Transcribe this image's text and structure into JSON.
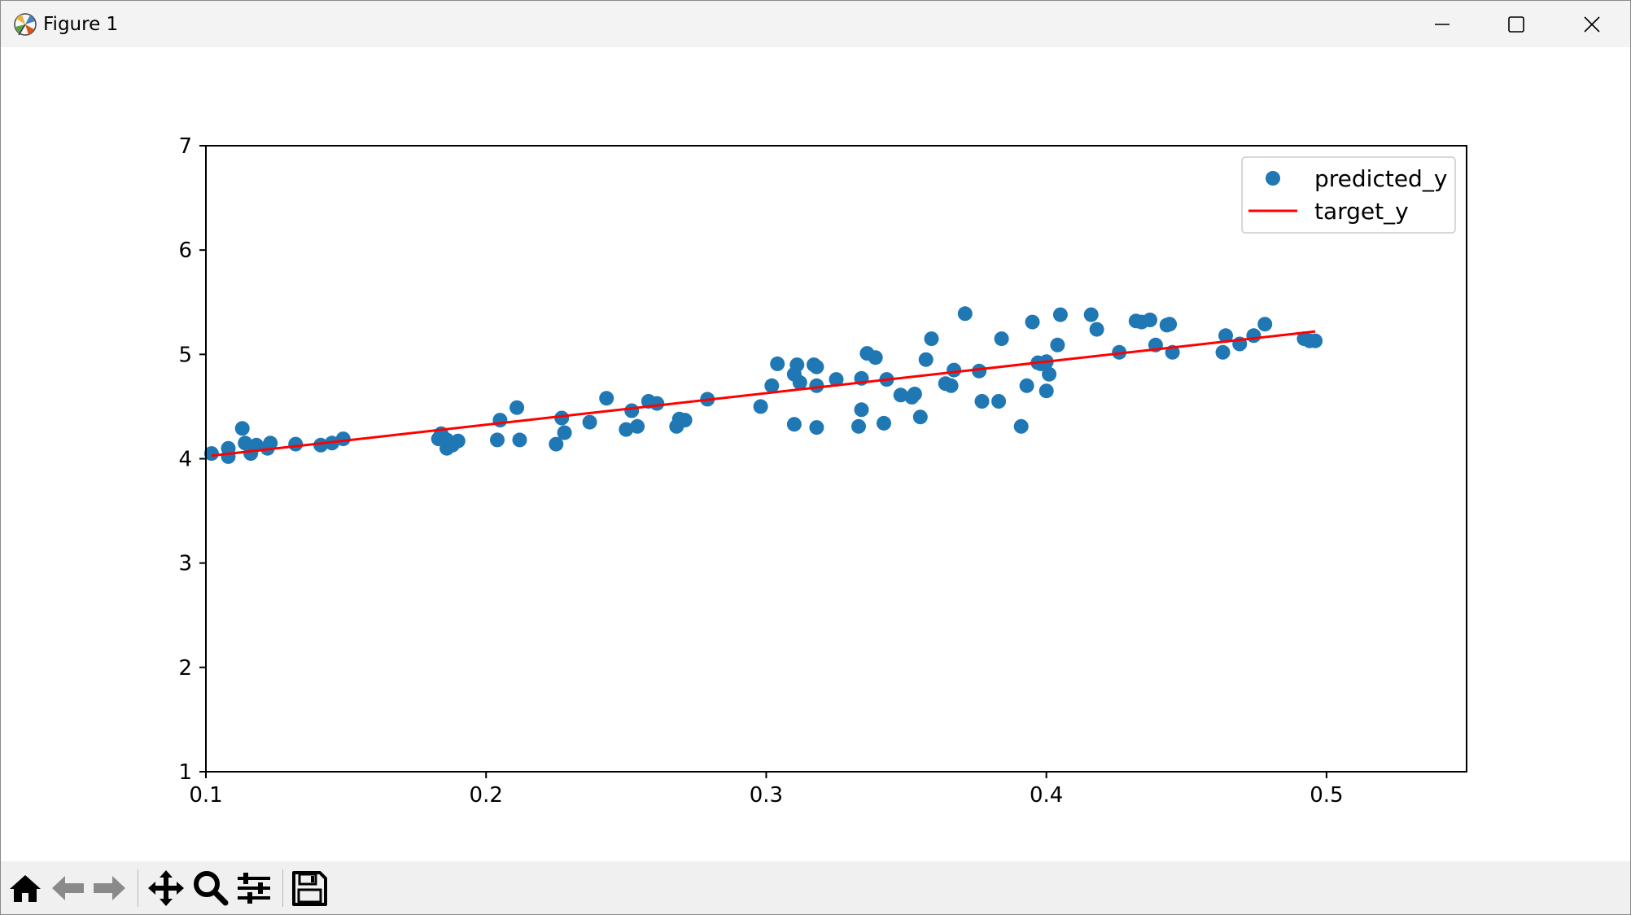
{
  "window": {
    "title": "Figure 1",
    "minimize_icon": "minimize-icon",
    "maximize_icon": "maximize-icon",
    "close_icon": "close-icon"
  },
  "toolbar": {
    "buttons": [
      {
        "name": "home",
        "icon": "home-icon"
      },
      {
        "name": "back",
        "icon": "back-arrow-icon"
      },
      {
        "name": "forward",
        "icon": "forward-arrow-icon"
      },
      {
        "name": "pan",
        "icon": "pan-move-icon"
      },
      {
        "name": "zoom",
        "icon": "zoom-magnifier-icon"
      },
      {
        "name": "configure-subplots",
        "icon": "sliders-icon"
      },
      {
        "name": "save",
        "icon": "save-floppy-icon"
      }
    ]
  },
  "chart_data": {
    "type": "scatter",
    "title": "",
    "xlabel": "",
    "ylabel": "",
    "xlim": [
      0.1,
      0.55
    ],
    "ylim": [
      1,
      7
    ],
    "xticks": [
      "0.1",
      "0.2",
      "0.3",
      "0.4",
      "0.5"
    ],
    "yticks": [
      "1",
      "2",
      "3",
      "4",
      "5",
      "6",
      "7"
    ],
    "grid": false,
    "legend_position": "upper right",
    "series": [
      {
        "name": "predicted_y",
        "kind": "scatter",
        "color": "#1f77b4",
        "points": [
          [
            0.102,
            4.05
          ],
          [
            0.108,
            4.1
          ],
          [
            0.108,
            4.02
          ],
          [
            0.113,
            4.29
          ],
          [
            0.114,
            4.15
          ],
          [
            0.116,
            4.05
          ],
          [
            0.118,
            4.13
          ],
          [
            0.122,
            4.1
          ],
          [
            0.123,
            4.15
          ],
          [
            0.132,
            4.14
          ],
          [
            0.141,
            4.13
          ],
          [
            0.145,
            4.15
          ],
          [
            0.149,
            4.19
          ],
          [
            0.183,
            4.19
          ],
          [
            0.184,
            4.24
          ],
          [
            0.186,
            4.1
          ],
          [
            0.186,
            4.18
          ],
          [
            0.188,
            4.13
          ],
          [
            0.19,
            4.17
          ],
          [
            0.204,
            4.18
          ],
          [
            0.205,
            4.37
          ],
          [
            0.211,
            4.49
          ],
          [
            0.212,
            4.18
          ],
          [
            0.225,
            4.14
          ],
          [
            0.227,
            4.39
          ],
          [
            0.228,
            4.25
          ],
          [
            0.237,
            4.35
          ],
          [
            0.243,
            4.58
          ],
          [
            0.25,
            4.28
          ],
          [
            0.252,
            4.46
          ],
          [
            0.254,
            4.31
          ],
          [
            0.258,
            4.55
          ],
          [
            0.261,
            4.53
          ],
          [
            0.268,
            4.31
          ],
          [
            0.269,
            4.38
          ],
          [
            0.271,
            4.37
          ],
          [
            0.279,
            4.57
          ],
          [
            0.298,
            4.5
          ],
          [
            0.302,
            4.7
          ],
          [
            0.304,
            4.91
          ],
          [
            0.31,
            4.81
          ],
          [
            0.31,
            4.33
          ],
          [
            0.311,
            4.9
          ],
          [
            0.312,
            4.73
          ],
          [
            0.317,
            4.9
          ],
          [
            0.318,
            4.88
          ],
          [
            0.318,
            4.7
          ],
          [
            0.318,
            4.3
          ],
          [
            0.325,
            4.76
          ],
          [
            0.333,
            4.31
          ],
          [
            0.334,
            4.77
          ],
          [
            0.334,
            4.47
          ],
          [
            0.336,
            5.01
          ],
          [
            0.339,
            4.97
          ],
          [
            0.342,
            4.34
          ],
          [
            0.343,
            4.76
          ],
          [
            0.348,
            4.61
          ],
          [
            0.352,
            4.59
          ],
          [
            0.353,
            4.62
          ],
          [
            0.355,
            4.4
          ],
          [
            0.357,
            4.95
          ],
          [
            0.359,
            5.15
          ],
          [
            0.364,
            4.72
          ],
          [
            0.366,
            4.7
          ],
          [
            0.367,
            4.85
          ],
          [
            0.371,
            5.39
          ],
          [
            0.376,
            4.84
          ],
          [
            0.377,
            4.55
          ],
          [
            0.383,
            4.55
          ],
          [
            0.384,
            5.15
          ],
          [
            0.391,
            4.31
          ],
          [
            0.393,
            4.7
          ],
          [
            0.395,
            5.31
          ],
          [
            0.397,
            4.92
          ],
          [
            0.398,
            4.91
          ],
          [
            0.4,
            4.93
          ],
          [
            0.4,
            4.65
          ],
          [
            0.401,
            4.81
          ],
          [
            0.404,
            5.09
          ],
          [
            0.405,
            5.38
          ],
          [
            0.416,
            5.38
          ],
          [
            0.418,
            5.24
          ],
          [
            0.426,
            5.02
          ],
          [
            0.432,
            5.32
          ],
          [
            0.434,
            5.31
          ],
          [
            0.437,
            5.33
          ],
          [
            0.439,
            5.09
          ],
          [
            0.443,
            5.28
          ],
          [
            0.444,
            5.29
          ],
          [
            0.445,
            5.02
          ],
          [
            0.463,
            5.02
          ],
          [
            0.464,
            5.18
          ],
          [
            0.469,
            5.1
          ],
          [
            0.474,
            5.18
          ],
          [
            0.478,
            5.29
          ],
          [
            0.492,
            5.15
          ],
          [
            0.494,
            5.13
          ],
          [
            0.496,
            5.13
          ]
        ]
      },
      {
        "name": "target_y",
        "kind": "line",
        "color": "#ff0000",
        "x": [
          0.102,
          0.496
        ],
        "y": [
          4.03,
          5.22
        ]
      }
    ]
  }
}
